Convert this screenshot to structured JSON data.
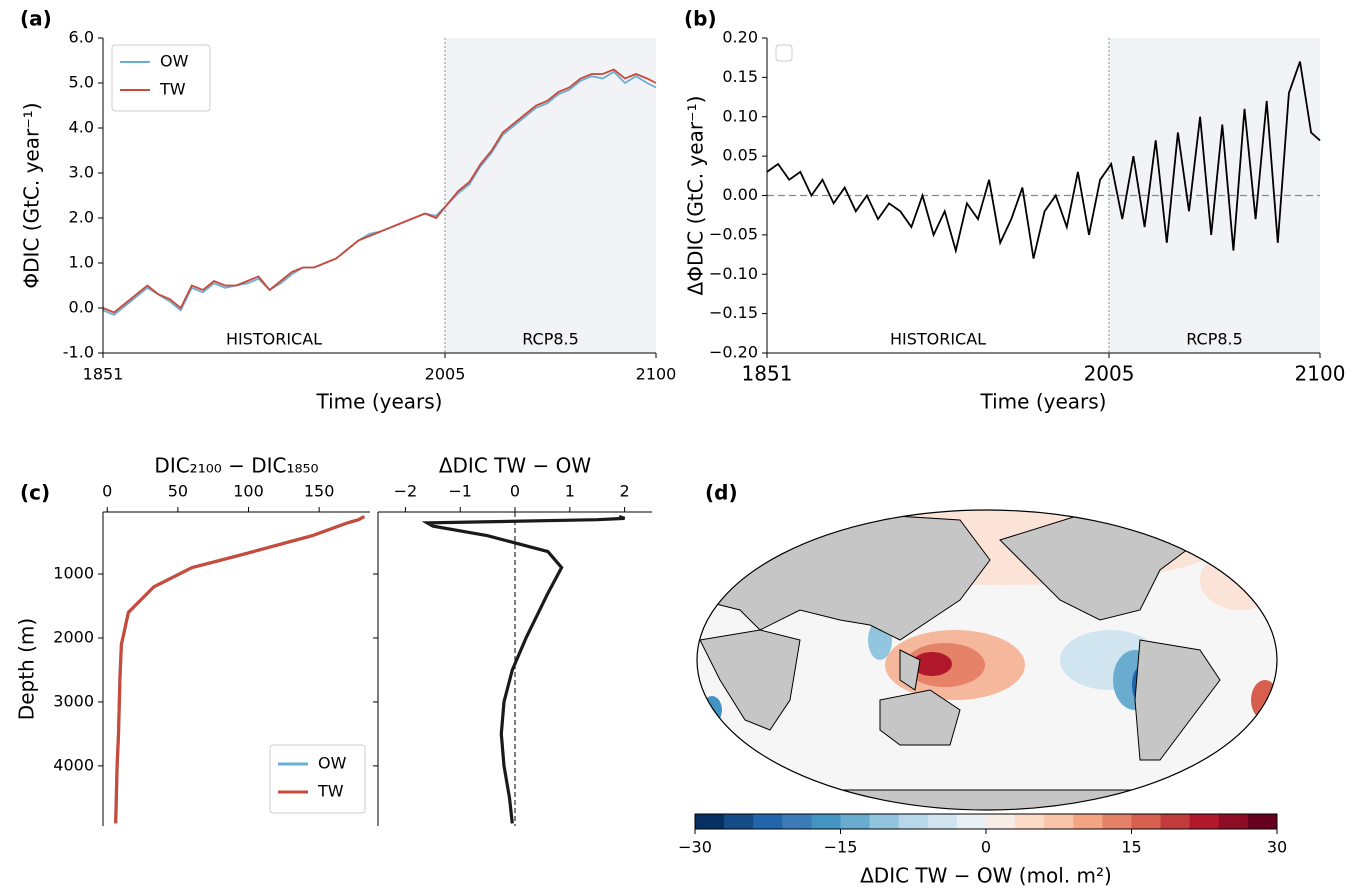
{
  "chart_data": [
    {
      "type": "line",
      "panel_label": "(a)",
      "ylabel": "ΦDIC  (GtC. year⁻¹)",
      "xlabel": "Time (years)",
      "x": [
        1851,
        1856,
        1861,
        1866,
        1871,
        1876,
        1881,
        1886,
        1891,
        1896,
        1901,
        1906,
        1911,
        1916,
        1921,
        1926,
        1931,
        1936,
        1941,
        1946,
        1951,
        1956,
        1961,
        1966,
        1971,
        1976,
        1981,
        1986,
        1991,
        1996,
        2001,
        2006,
        2011,
        2016,
        2021,
        2026,
        2031,
        2036,
        2041,
        2046,
        2051,
        2056,
        2061,
        2066,
        2071,
        2076,
        2081,
        2086,
        2091,
        2096,
        2100
      ],
      "series": [
        {
          "name": "OW",
          "color": "#6aaed6",
          "values": [
            -0.05,
            -0.15,
            0.05,
            0.25,
            0.45,
            0.3,
            0.15,
            -0.05,
            0.45,
            0.35,
            0.55,
            0.45,
            0.5,
            0.55,
            0.65,
            0.4,
            0.55,
            0.75,
            0.9,
            0.9,
            1.0,
            1.1,
            1.3,
            1.5,
            1.65,
            1.7,
            1.8,
            1.9,
            2.0,
            2.1,
            2.05,
            2.3,
            2.55,
            2.75,
            3.15,
            3.45,
            3.85,
            4.05,
            4.25,
            4.45,
            4.55,
            4.75,
            4.85,
            5.05,
            5.15,
            5.1,
            5.25,
            5.0,
            5.15,
            5.0,
            4.9
          ]
        },
        {
          "name": "TW",
          "color": "#c84a3a",
          "values": [
            0.0,
            -0.1,
            0.1,
            0.3,
            0.5,
            0.3,
            0.2,
            0.0,
            0.5,
            0.4,
            0.6,
            0.5,
            0.5,
            0.6,
            0.7,
            0.4,
            0.6,
            0.8,
            0.9,
            0.9,
            1.0,
            1.1,
            1.3,
            1.5,
            1.6,
            1.7,
            1.8,
            1.9,
            2.0,
            2.1,
            2.0,
            2.3,
            2.6,
            2.8,
            3.2,
            3.5,
            3.9,
            4.1,
            4.3,
            4.5,
            4.6,
            4.8,
            4.9,
            5.1,
            5.2,
            5.2,
            5.3,
            5.1,
            5.2,
            5.1,
            5.0
          ]
        }
      ],
      "xlim": [
        1851,
        2100
      ],
      "xticks": [
        1851,
        2005,
        2100
      ],
      "ylim": [
        -1,
        6
      ],
      "yticks": [
        {
          "value": -1,
          "label": "-1.0"
        },
        {
          "value": 0,
          "label": "0.0"
        },
        {
          "value": 1,
          "label": "1.0"
        },
        {
          "value": 2,
          "label": "2.0"
        },
        {
          "value": 3,
          "label": "3.0"
        },
        {
          "value": 4,
          "label": "4.0"
        },
        {
          "value": 5,
          "label": "5.0"
        },
        {
          "value": 6,
          "label": "6.0"
        }
      ],
      "vline": 2005,
      "shaded_span": [
        2005,
        2100
      ],
      "annotations": [
        "HISTORICAL",
        "RCP8.5"
      ],
      "legend": "upper left"
    },
    {
      "type": "line",
      "panel_label": "(b)",
      "ylabel": "ΔΦDIC  (GtC. year⁻¹)",
      "xlabel": "Time (years)",
      "x": [
        1851,
        1856,
        1861,
        1866,
        1871,
        1876,
        1881,
        1886,
        1891,
        1896,
        1901,
        1906,
        1911,
        1916,
        1921,
        1926,
        1931,
        1936,
        1941,
        1946,
        1951,
        1956,
        1961,
        1966,
        1971,
        1976,
        1981,
        1986,
        1991,
        1996,
        2001,
        2006,
        2011,
        2016,
        2021,
        2026,
        2031,
        2036,
        2041,
        2046,
        2051,
        2056,
        2061,
        2066,
        2071,
        2076,
        2081,
        2086,
        2091,
        2096,
        2100
      ],
      "series": [
        {
          "color": "#000000",
          "values": [
            0.03,
            0.04,
            0.02,
            0.03,
            0.0,
            0.02,
            -0.01,
            0.01,
            -0.02,
            0.0,
            -0.03,
            -0.01,
            -0.02,
            -0.04,
            0.0,
            -0.05,
            -0.02,
            -0.07,
            -0.01,
            -0.03,
            0.02,
            -0.06,
            -0.03,
            0.01,
            -0.08,
            -0.02,
            0.0,
            -0.04,
            0.03,
            -0.05,
            0.02,
            0.04,
            -0.03,
            0.05,
            -0.04,
            0.07,
            -0.06,
            0.08,
            -0.02,
            0.1,
            -0.05,
            0.09,
            -0.07,
            0.11,
            -0.03,
            0.12,
            -0.06,
            0.13,
            0.17,
            0.08,
            0.07
          ]
        }
      ],
      "xlim": [
        1851,
        2100
      ],
      "xticks": [
        1851,
        2005,
        2100
      ],
      "ylim": [
        -0.2,
        0.2
      ],
      "yticks": [
        {
          "value": -0.2,
          "label": "−0.20"
        },
        {
          "value": -0.15,
          "label": "−0.15"
        },
        {
          "value": -0.1,
          "label": "−0.10"
        },
        {
          "value": -0.05,
          "label": "−0.05"
        },
        {
          "value": 0,
          "label": "0.00"
        },
        {
          "value": 0.05,
          "label": "0.05"
        },
        {
          "value": 0.1,
          "label": "0.10"
        },
        {
          "value": 0.15,
          "label": "0.15"
        },
        {
          "value": 0.2,
          "label": "0.20"
        }
      ],
      "vline": 2005,
      "hline": 0,
      "shaded_span": [
        2005,
        2100
      ],
      "annotations": [
        "HISTORICAL",
        "RCP8.5"
      ],
      "legend": "upper left"
    },
    {
      "type": "profile",
      "panel_label": "(c)",
      "title": "DIC₂₁₀₀ − DIC₁₈₅₀",
      "ylabel": "Depth (m)",
      "depth": [
        100,
        150,
        200,
        400,
        700,
        900,
        1200,
        1600,
        2100,
        2600,
        3500,
        4000,
        4900
      ],
      "series": [
        {
          "name": "OW",
          "color": "#6aaed6",
          "values": [
            182,
            178,
            170,
            145,
            95,
            60,
            33,
            15,
            10,
            9,
            8,
            7,
            6
          ]
        },
        {
          "name": "TW",
          "color": "#c84a3a",
          "values": [
            182,
            178,
            170,
            145,
            95,
            60,
            33,
            15,
            10,
            9,
            8,
            7,
            6
          ]
        }
      ],
      "xlim": [
        -3,
        186
      ],
      "xticks": [
        0,
        50,
        100,
        150
      ],
      "ylim": [
        30,
        4940
      ],
      "yticks": [
        1000,
        2000,
        3000,
        4000
      ],
      "legend": "lower right"
    },
    {
      "type": "profile",
      "title": "ΔDIC TW − OW",
      "depth": [
        100,
        130,
        150,
        200,
        250,
        400,
        650,
        900,
        1300,
        2000,
        2500,
        3000,
        3500,
        4000,
        4500,
        4900
      ],
      "series": [
        {
          "color": "#1a1a1a",
          "values": [
            1.9,
            2.0,
            1.5,
            -1.6,
            -1.5,
            -0.5,
            0.6,
            0.85,
            0.6,
            0.2,
            -0.05,
            -0.2,
            -0.25,
            -0.2,
            -0.1,
            -0.05
          ]
        }
      ],
      "xlim": [
        -2.5,
        2.5
      ],
      "xticks": [
        {
          "value": -2,
          "label": "−2"
        },
        {
          "value": -1,
          "label": "−1"
        },
        0,
        1,
        2
      ],
      "ylim": [
        30,
        4940
      ],
      "vline": 0
    },
    {
      "type": "map",
      "panel_label": "(d)",
      "colorbar_label": "ΔDIC TW − OW (mol. m²)",
      "clim": [
        -30,
        30
      ],
      "cticks": [
        {
          "value": -30,
          "label": "−30"
        },
        {
          "value": -15,
          "label": "−15"
        },
        0,
        15,
        30
      ],
      "colors": [
        "#053061",
        "#134c87",
        "#2166ac",
        "#3a7bb8",
        "#4393c3",
        "#6aacd0",
        "#92c5de",
        "#b8d7e8",
        "#d1e5f0",
        "#e7f0f5",
        "#f8ece6",
        "#fddbc7",
        "#f9c4a9",
        "#f4a582",
        "#e58267",
        "#d6604d",
        "#c13b3c",
        "#b2182b",
        "#8e0d24",
        "#67001f"
      ]
    }
  ]
}
